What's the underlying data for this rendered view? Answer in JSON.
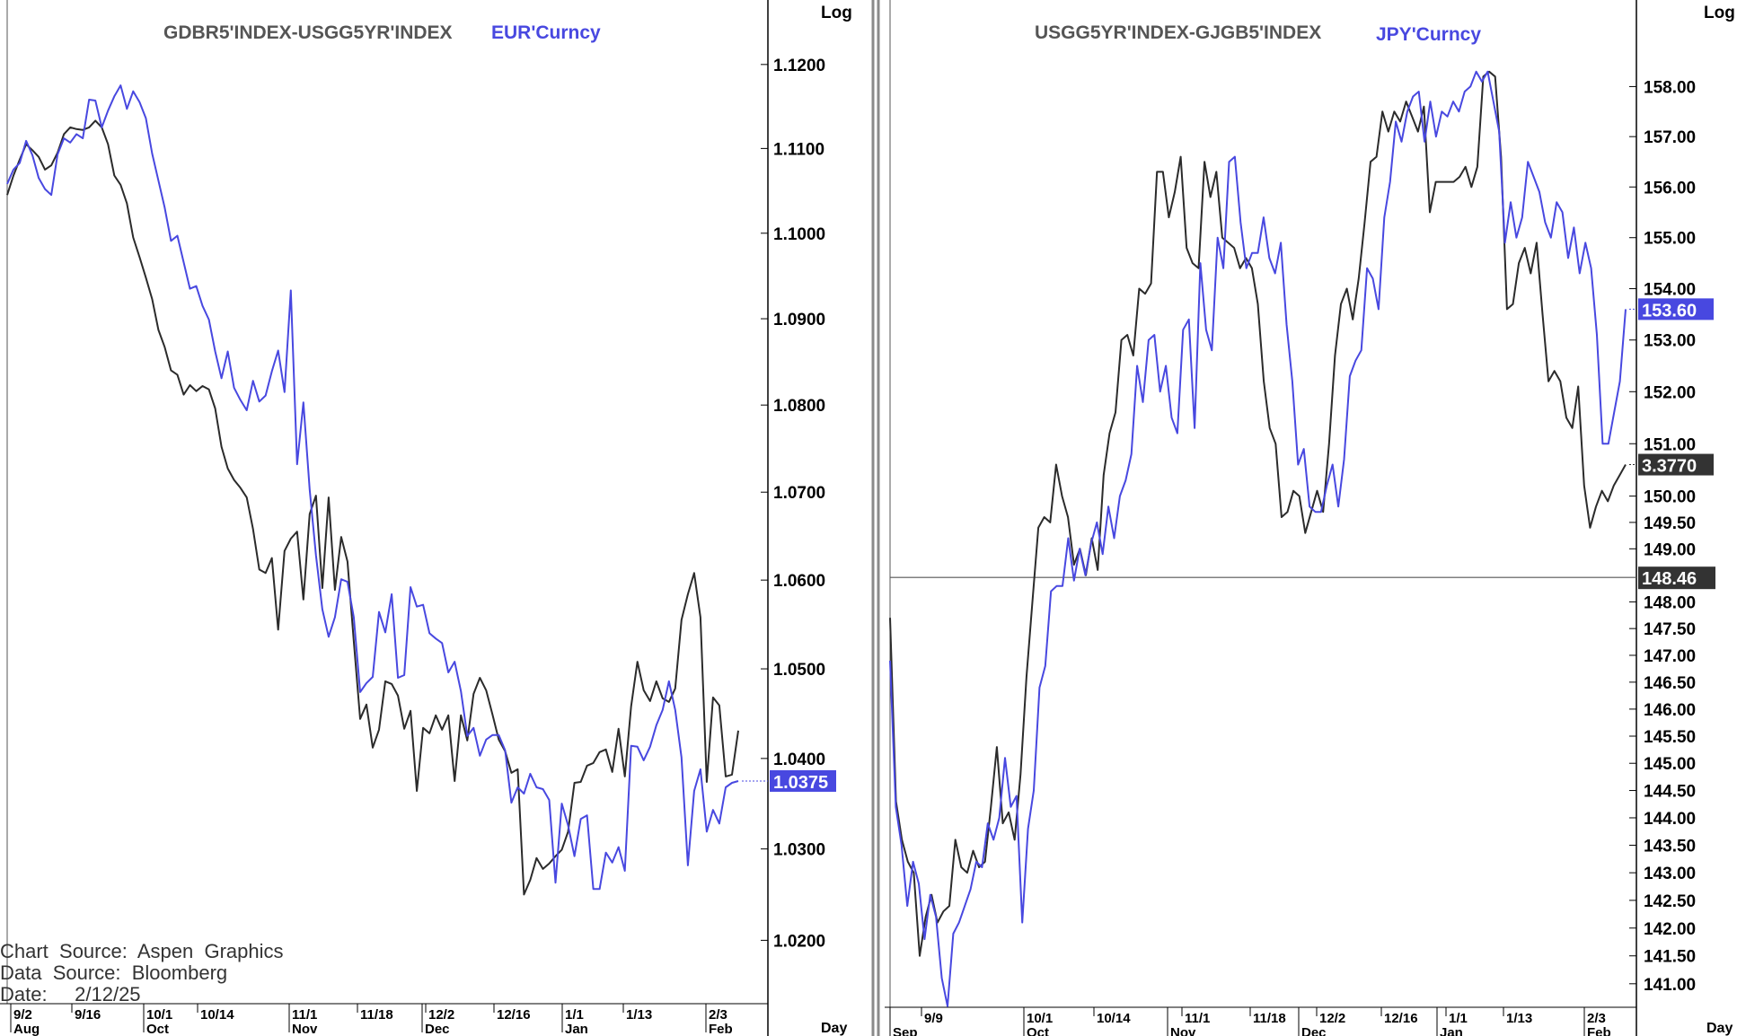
{
  "colors": {
    "black_series": "#2b2b2b",
    "blue_series": "#4848e0",
    "axis": "#000000",
    "ref_line": "#555555",
    "divider": "#8a8a8a"
  },
  "source": {
    "chart_line": "Chart  Source:  Aspen  Graphics",
    "data_line": "Data  Source:  Bloomberg",
    "date_line": "Date:     2/12/25"
  },
  "chart_data": [
    {
      "type": "line",
      "scale": "log",
      "scale_label": "Log",
      "xaxis_label": "Day",
      "x_ticks": [
        "9/2",
        "9/16",
        "10/1",
        "10/14",
        "11/1",
        "11/18",
        "12/2",
        "12/16",
        "1/1",
        "1/13",
        "2/3"
      ],
      "month_labels": [
        "Aug",
        "Oct",
        "Nov",
        "Dec",
        "Jan",
        "Feb"
      ],
      "y_ticks": [
        "1.1200",
        "1.1100",
        "1.1000",
        "1.0900",
        "1.0800",
        "1.0700",
        "1.0600",
        "1.0500",
        "1.0400",
        "1.0300",
        "1.0200"
      ],
      "ylim": [
        1.0175,
        1.1245
      ],
      "series": [
        {
          "name": "GDBR5'INDEX-USGG5YR'INDEX",
          "color": "#2b2b2b",
          "values": [
            1.1045,
            1.1068,
            1.1087,
            1.1105,
            1.1098,
            1.109,
            1.1075,
            1.108,
            1.1095,
            1.1117,
            1.1125,
            1.1123,
            1.1122,
            1.1125,
            1.1133,
            1.1125,
            1.1105,
            1.1068,
            1.1057,
            1.1035,
            1.0995,
            1.0972,
            1.0948,
            1.0923,
            1.0887,
            1.0867,
            1.084,
            1.0835,
            1.0812,
            1.0823,
            1.0816,
            1.0822,
            1.0818,
            1.0796,
            1.0752,
            1.0727,
            1.0714,
            1.0705,
            1.0694,
            1.0658,
            1.0612,
            1.0608,
            1.0625,
            1.0544,
            1.0633,
            1.0647,
            1.0655,
            1.0578,
            1.0675,
            1.0696,
            1.0591,
            1.0694,
            1.0589,
            1.0649,
            1.0621,
            1.0531,
            1.0444,
            1.046,
            1.0412,
            1.0432,
            1.0486,
            1.0483,
            1.047,
            1.0433,
            1.0453,
            1.0364,
            1.0434,
            1.0428,
            1.0448,
            1.0432,
            1.0448,
            1.0375,
            1.0448,
            1.042,
            1.0472,
            1.049,
            1.0476,
            1.0449,
            1.0421,
            1.0408,
            1.0384,
            1.0388,
            1.025,
            1.0266,
            1.029,
            1.0278,
            1.0284,
            1.0292,
            1.0299,
            1.0319,
            1.0373,
            1.0374,
            1.0392,
            1.0395,
            1.0407,
            1.041,
            1.0385,
            1.0433,
            1.038,
            1.0458,
            1.0508,
            1.0476,
            1.0464,
            1.0486,
            1.0467,
            1.0463,
            1.0478,
            1.0555,
            1.0584,
            1.0608,
            1.0558,
            1.0374,
            1.0468,
            1.0459,
            1.038,
            1.0382,
            1.0431
          ]
        },
        {
          "name": "EUR'Curncy",
          "color": "#4848e0",
          "values": [
            1.1058,
            1.1075,
            1.1083,
            1.1109,
            1.1092,
            1.1065,
            1.1052,
            1.1045,
            1.1093,
            1.1112,
            1.1107,
            1.1117,
            1.1112,
            1.1158,
            1.1157,
            1.1125,
            1.1145,
            1.1162,
            1.1175,
            1.1147,
            1.1168,
            1.1155,
            1.1136,
            1.1094,
            1.1062,
            1.103,
            1.0991,
            1.0997,
            1.0966,
            1.0935,
            1.0938,
            1.0915,
            1.0899,
            1.0862,
            1.0831,
            1.0862,
            1.082,
            1.0806,
            1.0794,
            1.0828,
            1.0804,
            1.0811,
            1.0839,
            1.0863,
            1.0815,
            1.0933,
            1.0732,
            1.0803,
            1.0703,
            1.0628,
            1.0567,
            1.0536,
            1.0558,
            1.0601,
            1.0598,
            1.0558,
            1.0474,
            1.0484,
            1.0491,
            1.0564,
            1.0541,
            1.0584,
            1.049,
            1.0493,
            1.0592,
            1.057,
            1.0572,
            1.054,
            1.0534,
            1.0529,
            1.0496,
            1.0508,
            1.0475,
            1.0425,
            1.0434,
            1.0403,
            1.0421,
            1.0426,
            1.0426,
            1.0409,
            1.0351,
            1.0368,
            1.0361,
            1.0383,
            1.0368,
            1.0366,
            1.0354,
            1.0263,
            1.035,
            1.0326,
            1.0292,
            1.0333,
            1.0337,
            1.0256,
            1.0256,
            1.0296,
            1.0285,
            1.0302,
            1.0276,
            1.0414,
            1.0413,
            1.0398,
            1.0413,
            1.0437,
            1.0454,
            1.0486,
            1.0454,
            1.0401,
            1.0282,
            1.0364,
            1.0388,
            1.0319,
            1.0343,
            1.0328,
            1.0368,
            1.0373,
            1.0375
          ]
        }
      ],
      "last_value_label": "1.0375",
      "last_value_series": 1
    },
    {
      "type": "line",
      "scale": "log",
      "scale_label": "Log",
      "xaxis_label": "Day",
      "x_ticks": [
        "9/9",
        "10/1",
        "10/14",
        "11/1",
        "11/18",
        "12/2",
        "12/16",
        "1/1",
        "1/13",
        "2/3"
      ],
      "month_labels": [
        "Sep",
        "Oct",
        "Nov",
        "Dec",
        "Jan",
        "Feb"
      ],
      "y_ticks": [
        "158.00",
        "157.00",
        "156.00",
        "155.00",
        "154.00",
        "153.00",
        "152.00",
        "151.00",
        "150.00",
        "149.50",
        "149.00",
        "148.00",
        "147.50",
        "147.00",
        "146.50",
        "146.00",
        "145.50",
        "145.00",
        "144.50",
        "144.00",
        "143.50",
        "143.00",
        "142.50",
        "142.00",
        "141.50",
        "141.00"
      ],
      "ylim": [
        140.58,
        159.2
      ],
      "series": [
        {
          "name": "USGG5YR'INDEX-GJGB5'INDEX",
          "color": "#2b2b2b",
          "values": [
            147.7,
            144.3,
            143.6,
            143.2,
            143.0,
            141.5,
            142.2,
            142.6,
            142.1,
            142.3,
            142.4,
            143.6,
            143.1,
            143.0,
            143.4,
            143.1,
            143.2,
            144.2,
            145.3,
            143.9,
            144.1,
            143.6,
            144.8,
            146.6,
            148.0,
            149.4,
            149.6,
            149.5,
            150.6,
            150.0,
            149.6,
            148.7,
            149.0,
            148.5,
            149.2,
            148.6,
            150.4,
            151.2,
            151.6,
            153.0,
            153.1,
            152.7,
            154.0,
            153.9,
            154.1,
            156.3,
            156.3,
            155.4,
            155.9,
            156.6,
            154.8,
            154.5,
            154.4,
            156.5,
            155.8,
            156.3,
            155.0,
            154.9,
            154.8,
            154.4,
            154.6,
            154.4,
            153.7,
            152.2,
            151.3,
            151.0,
            149.6,
            149.7,
            150.1,
            150.0,
            149.3,
            149.7,
            150.1,
            149.7,
            151.0,
            152.7,
            153.7,
            154.0,
            153.4,
            154.2,
            155.3,
            156.5,
            156.6,
            157.5,
            157.1,
            157.5,
            157.3,
            157.7,
            157.4,
            157.1,
            157.6,
            155.5,
            156.1,
            156.1,
            156.1,
            156.1,
            156.2,
            156.4,
            156.0,
            156.4,
            158.2,
            158.3,
            158.2,
            156.6,
            153.6,
            153.7,
            154.5,
            154.8,
            154.3,
            154.9,
            153.5,
            152.2,
            152.4,
            152.2,
            151.5,
            151.3,
            152.1,
            150.2,
            149.4,
            149.8,
            150.1,
            149.9,
            150.2,
            150.4,
            150.6
          ]
        },
        {
          "name": "JPY'Curncy",
          "color": "#4848e0",
          "values": [
            146.9,
            144.2,
            143.5,
            142.4,
            143.2,
            142.8,
            141.8,
            142.6,
            142.2,
            141.1,
            140.6,
            141.9,
            142.1,
            142.4,
            142.7,
            143.2,
            143.1,
            143.9,
            143.6,
            144.0,
            145.1,
            144.2,
            144.4,
            142.1,
            143.8,
            144.5,
            146.4,
            146.8,
            148.2,
            148.3,
            148.3,
            149.2,
            148.4,
            149.0,
            148.5,
            149.1,
            149.5,
            148.9,
            149.8,
            149.2,
            150.0,
            150.3,
            150.8,
            152.5,
            151.8,
            153.0,
            153.1,
            152.0,
            152.5,
            151.5,
            151.2,
            153.2,
            153.4,
            151.3,
            154.5,
            153.2,
            152.8,
            155.0,
            154.4,
            156.5,
            156.6,
            155.3,
            154.4,
            154.7,
            154.7,
            155.4,
            154.6,
            154.3,
            154.9,
            153.3,
            152.2,
            150.6,
            150.9,
            149.8,
            149.7,
            149.7,
            150.2,
            150.6,
            149.8,
            150.7,
            152.3,
            152.6,
            152.8,
            154.4,
            154.2,
            153.6,
            155.4,
            156.1,
            157.3,
            156.9,
            157.5,
            157.8,
            157.9,
            156.9,
            157.7,
            157.0,
            157.5,
            157.4,
            157.7,
            157.5,
            157.9,
            158.0,
            158.3,
            158.1,
            158.3,
            157.7,
            157.1,
            154.9,
            155.7,
            155.0,
            155.4,
            156.5,
            156.2,
            155.9,
            155.3,
            155.0,
            155.7,
            155.5,
            154.6,
            155.2,
            154.3,
            154.9,
            154.4,
            153.1,
            151.0,
            151.0,
            151.6,
            152.2,
            153.6
          ]
        }
      ],
      "reference_line": 148.46,
      "ref_label": "148.46",
      "last_value_labels": [
        {
          "text": "153.60",
          "series": 1
        },
        {
          "text": "3.3770",
          "series": 0
        }
      ]
    }
  ]
}
